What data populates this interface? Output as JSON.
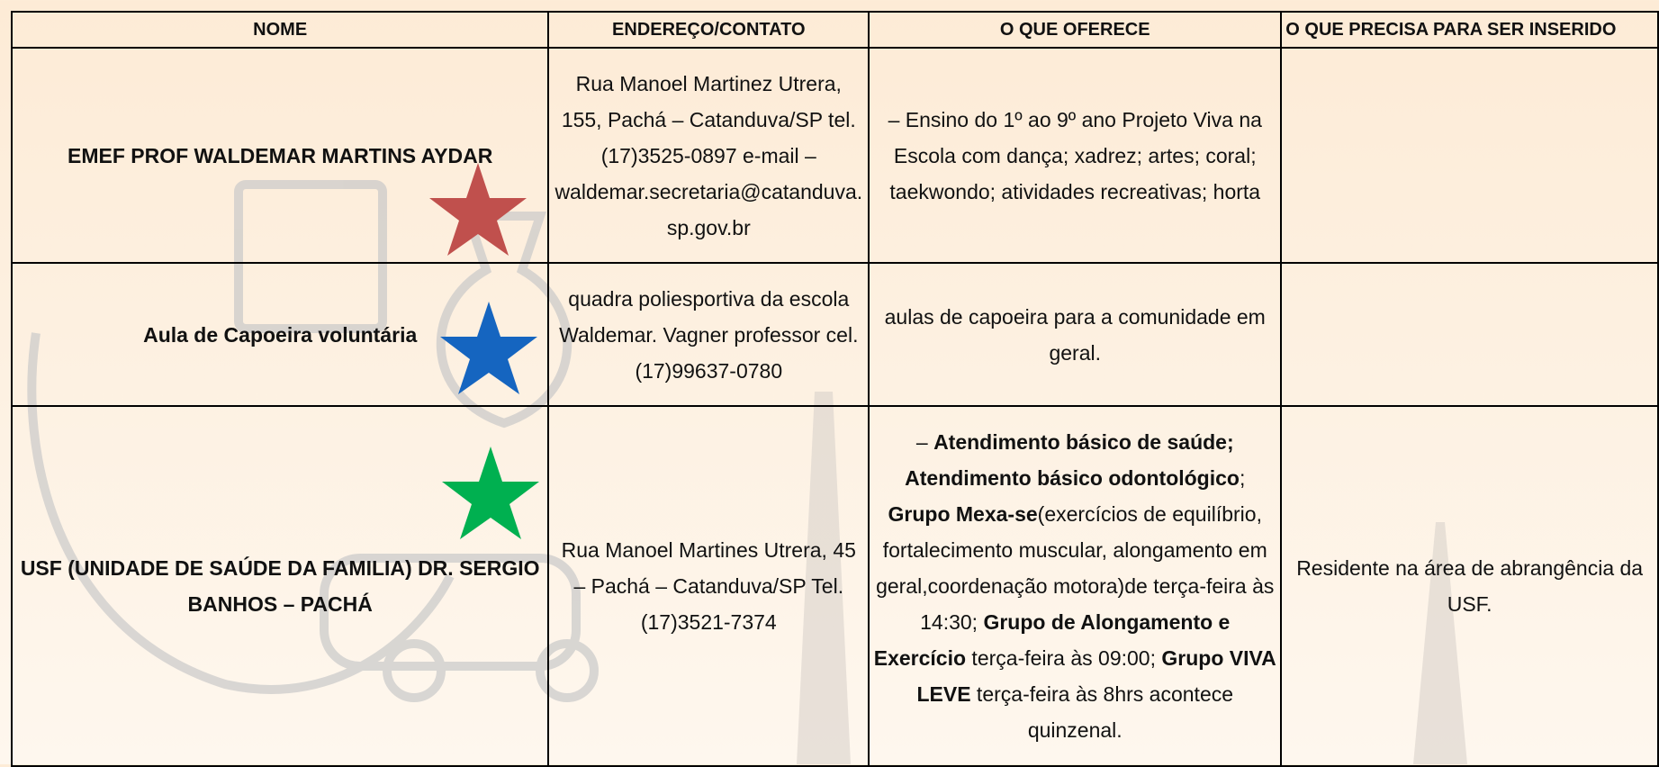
{
  "table": {
    "headers": [
      "NOME",
      "ENDEREÇO/CONTATO",
      "O QUE OFERECE",
      "O QUE PRECISA PARA SER INSERIDO"
    ],
    "rows": [
      {
        "nome": "EMEF PROF WALDEMAR MARTINS AYDAR",
        "endereco": "Rua Manoel Martinez Utrera, 155, Pachá – Catanduva/SP tel. (17)3525-0897 e-mail – waldemar.secretaria@catanduva.sp.gov.br",
        "oferece": "– Ensino do 1º ao 9º ano Projeto Viva na Escola com dança; xadrez; artes; coral; taekwondo; atividades recreativas; horta"
      },
      {
        "nome": "Aula de Capoeira voluntária",
        "endereco": "quadra poliesportiva da escola Waldemar. Vagner professor cel. (17)99637-0780",
        "oferece": "aulas de capoeira para a comunidade em geral."
      },
      {
        "nome": "USF (UNIDADE DE SAÚDE DA FAMILIA) DR. SERGIO BANHOS – PACHÁ",
        "endereco": "Rua Manoel Martines Utrera, 45 – Pachá – Catanduva/SP Tel. (17)3521-7374",
        "oferece": [
          {
            "text": "– "
          },
          {
            "text": "Atendimento básico de saúde; Atendimento básico odontológico",
            "bold": true
          },
          {
            "text": "; "
          },
          {
            "text": "Grupo Mexa-se",
            "bold": true
          },
          {
            "text": "(exercícios de equilíbrio, fortalecimento muscular, alongamento em geral,coordenação motora)de terça-feira às 14:30; "
          },
          {
            "text": "Grupo de Alongamento e Exercício",
            "bold": true
          },
          {
            "text": " terça-feira às 09:00; "
          },
          {
            "text": "Grupo VIVA LEVE",
            "bold": true
          },
          {
            "text": " terça-feira às 8hrs acontece quinzenal."
          }
        ],
        "requisitos": "Residente na área de abrangência da USF."
      }
    ]
  }
}
